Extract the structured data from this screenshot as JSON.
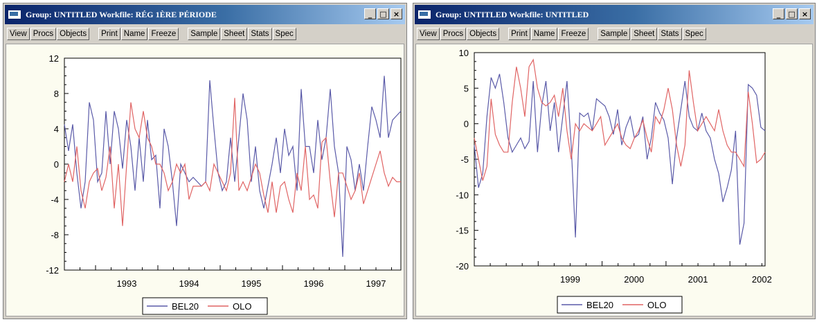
{
  "windows": [
    {
      "title": "Group: UNTITLED   Workfile: RÉG 1ÈRE PÉRIODE",
      "controls": {
        "minimize": "_",
        "maximize": "□",
        "close": "×"
      },
      "toolbar": {
        "view": "View",
        "procs": "Procs",
        "objects": "Objects",
        "print": "Print",
        "name": "Name",
        "freeze": "Freeze",
        "sample": "Sample",
        "sheet": "Sheet",
        "stats": "Stats",
        "spec": "Spec"
      },
      "legend": {
        "bel20": "BEL20",
        "olo": "OLO"
      },
      "colors": {
        "bel20": "#5a5aa8",
        "olo": "#e06464"
      }
    },
    {
      "title": "Group: UNTITLED   Workfile: UNTITLED",
      "controls": {
        "minimize": "_",
        "maximize": "□",
        "close": "×"
      },
      "toolbar": {
        "view": "View",
        "procs": "Procs",
        "objects": "Objects",
        "print": "Print",
        "name": "Name",
        "freeze": "Freeze",
        "sample": "Sample",
        "sheet": "Sheet",
        "stats": "Stats",
        "spec": "Spec"
      },
      "legend": {
        "bel20": "BEL20",
        "olo": "OLO"
      },
      "colors": {
        "bel20": "#5a5aa8",
        "olo": "#e06464"
      }
    }
  ],
  "chart_data": [
    {
      "type": "line",
      "x_start": 1992.5,
      "x_end": 1997.9,
      "ylim": [
        -12,
        12
      ],
      "yticks": [
        "12",
        "8",
        "4",
        "0",
        "-4",
        "-8",
        "-12"
      ],
      "xticks": [
        "1993",
        "1994",
        "1995",
        "1996",
        "1997"
      ],
      "grid": false,
      "legend_position": "bottom",
      "series": [
        {
          "name": "BEL20",
          "values": [
            4.5,
            1.5,
            4.5,
            -1,
            -5,
            -2,
            7,
            5,
            -2,
            -1,
            6,
            0,
            6,
            4,
            -0.5,
            5,
            2,
            -3,
            3,
            -2,
            5,
            0.5,
            1,
            -5,
            4,
            2,
            -2,
            -7,
            0,
            -1,
            -2,
            -1.5,
            -2,
            -2.5,
            -2,
            9.5,
            4,
            -1,
            -3,
            -2,
            3,
            -2,
            3,
            8,
            5,
            -2,
            2,
            -3,
            -5,
            -2.5,
            0,
            3,
            -1,
            4,
            1,
            2,
            -3,
            8.5,
            2,
            2,
            -1,
            5,
            0.5,
            3,
            8.5,
            2,
            -1,
            -10.5,
            2,
            0.5,
            -3,
            0,
            -3,
            2,
            6.5,
            5,
            3,
            10,
            3,
            5,
            5.5,
            6
          ]
        },
        {
          "name": "OLO",
          "values": [
            -2,
            0,
            -2,
            2,
            -3,
            -5,
            -2,
            -1,
            -0.5,
            -3,
            -1.5,
            2,
            -5,
            0,
            -7,
            0,
            7,
            4,
            3,
            6,
            3,
            2,
            0,
            0,
            -1,
            -3,
            -2,
            0,
            -1,
            0,
            -4,
            -2.5,
            -2.5,
            -2.5,
            -2,
            -3,
            0,
            -1,
            -2,
            -3,
            -1,
            7.5,
            -3,
            -2,
            -3,
            -1.5,
            0,
            -1,
            -3.5,
            -5.5,
            -2,
            -5.5,
            -2.5,
            -2,
            -4,
            -5.5,
            -1,
            -3,
            2,
            -4,
            -3.5,
            -5,
            2.5,
            3,
            -2,
            -6,
            -1,
            -1,
            -2.5,
            -4,
            -3,
            -1,
            -4.5,
            -3,
            -1.5,
            0,
            1.5,
            -1,
            -2.5,
            -1.5,
            -2,
            -2
          ]
        }
      ]
    },
    {
      "type": "line",
      "x_start": 1998.0,
      "x_end": 2002.55,
      "ylim": [
        -20,
        10
      ],
      "yticks": [
        "10",
        "5",
        "0",
        "-5",
        "-10",
        "-15",
        "-20"
      ],
      "xticks": [
        "1999",
        "2000",
        "2001",
        "2002"
      ],
      "grid": false,
      "legend_position": "bottom",
      "series": [
        {
          "name": "BEL20",
          "values": [
            -3,
            -9,
            -7,
            1,
            6.5,
            5,
            7,
            3,
            -2,
            -4,
            -3,
            -2,
            -3.5,
            -2.5,
            6,
            -4,
            2.5,
            6,
            -1,
            3,
            -4,
            1,
            6,
            -3,
            -16,
            1.5,
            1,
            1.5,
            -1,
            3.5,
            3,
            2.5,
            1,
            -1.5,
            2,
            -3,
            -0.5,
            1,
            -2,
            -1.5,
            1,
            -5,
            -2,
            3,
            1.5,
            0.5,
            -2,
            -8.5,
            -2,
            2,
            6,
            1,
            -0.5,
            -1,
            1.5,
            -1,
            -2,
            -5,
            -7,
            -11,
            -9,
            -6.5,
            -1,
            -17,
            -14,
            5.5,
            5,
            4,
            -0.5,
            -1
          ]
        },
        {
          "name": "OLO",
          "values": [
            -2,
            -5,
            -8,
            -6,
            3.5,
            -1.5,
            -3,
            -4,
            -4,
            3,
            8,
            5,
            1,
            8,
            9,
            5,
            3,
            2.5,
            3,
            4,
            1,
            5,
            -1,
            -5,
            0,
            -1,
            0,
            -0.5,
            -1,
            0,
            1,
            -3,
            -2,
            -1,
            0,
            -2,
            -3,
            -3.5,
            -2,
            -1,
            0.5,
            -2,
            -4,
            1,
            0,
            2,
            5,
            2,
            -3,
            -6,
            -3,
            7.5,
            3,
            -1,
            0,
            1,
            0,
            -1,
            2,
            -1,
            -3,
            -4,
            -4,
            -5,
            -6,
            4.5,
            0,
            -5.5,
            -5,
            -4
          ]
        }
      ]
    }
  ]
}
